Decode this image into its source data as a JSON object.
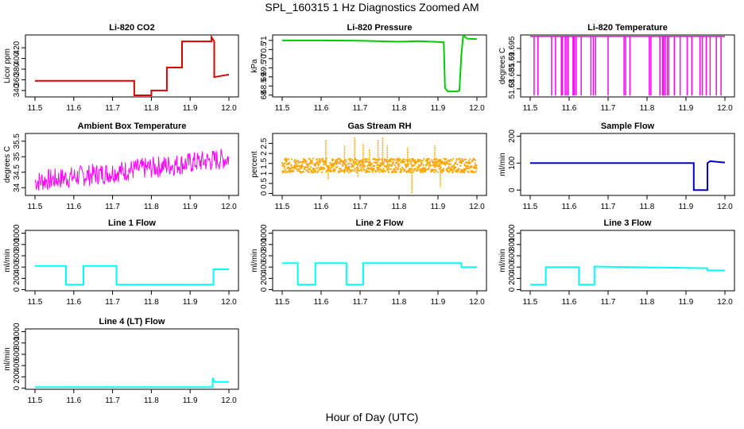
{
  "title": "SPL_160315  1 Hz Diagnostics Zoomed AM",
  "xlabel": "Hour of Day (UTC)",
  "chart_data": [
    {
      "type": "line",
      "title": "Li-820 CO2",
      "ylabel": "Licor ppm",
      "color": "#dd0000",
      "xlim": [
        11.5,
        12.0
      ],
      "ylim": [
        328,
        444
      ],
      "yticks": [
        340,
        360,
        380,
        400,
        420
      ],
      "x": [
        11.5,
        11.756,
        11.756,
        11.8,
        11.8,
        11.84,
        11.84,
        11.879,
        11.879,
        11.955,
        11.955,
        11.962,
        11.962,
        12.0
      ],
      "y": [
        358,
        358,
        331,
        331,
        340,
        340,
        383,
        383,
        432,
        432,
        440,
        432,
        365,
        370
      ]
    },
    {
      "type": "line",
      "title": "Li-820 Pressure",
      "ylabel": "kPa",
      "color": "#00cc00",
      "xlim": [
        11.5,
        12.0
      ],
      "ylim": [
        67.9,
        71.3
      ],
      "yticks": [
        68.0,
        68.5,
        69.0,
        69.5,
        70.0,
        70.5,
        71.0
      ],
      "x": [
        11.5,
        11.6,
        11.7,
        11.8,
        11.85,
        11.9,
        11.915,
        11.918,
        11.925,
        11.95,
        11.955,
        11.96,
        11.965,
        11.975,
        12.0
      ],
      "y": [
        71.0,
        71.0,
        70.98,
        70.93,
        70.96,
        70.92,
        70.9,
        68.4,
        68.2,
        68.2,
        68.25,
        70.2,
        71.3,
        71.1,
        71.07
      ]
    },
    {
      "type": "line",
      "title": "Li-820 Temperature",
      "ylabel": "degrees C",
      "color": "#ff00ff",
      "xlim": [
        11.5,
        12.0
      ],
      "ylim": [
        51.677,
        51.7
      ],
      "yticks": [
        51.68,
        51.685,
        51.69,
        51.695
      ],
      "high": 51.6995,
      "low": 51.6775,
      "spikes": [
        11.51,
        11.52,
        11.555,
        11.565,
        11.58,
        11.583,
        11.59,
        11.594,
        11.598,
        11.61,
        11.613,
        11.618,
        11.631,
        11.656,
        11.662,
        11.668,
        11.7,
        11.741,
        11.745,
        11.756,
        11.806,
        11.81,
        11.833,
        11.84,
        11.843,
        11.847,
        11.852,
        11.856,
        11.87,
        11.885,
        11.903,
        11.915,
        11.936,
        11.942,
        11.952,
        11.962,
        11.978,
        11.99
      ]
    },
    {
      "type": "line",
      "title": "Ambient Box Temperature",
      "ylabel": "degrees C",
      "color": "#ff00ff",
      "xlim": [
        11.5,
        12.0
      ],
      "ylim": [
        33.75,
        35.75
      ],
      "yticks": [
        34.0,
        34.5,
        35.0,
        35.5
      ],
      "trend_x": [
        11.5,
        12.0
      ],
      "trend_y": [
        34.2,
        34.95
      ],
      "amplitude": 0.35
    },
    {
      "type": "scatter",
      "title": "Gas Stream RH",
      "ylabel": "percent",
      "color": "#ffa500",
      "xlim": [
        11.5,
        12.0
      ],
      "ylim": [
        -0.1,
        3.0
      ],
      "yticks": [
        0.0,
        0.5,
        1.0,
        1.5,
        2.0,
        2.5
      ],
      "center": 1.4,
      "band": 0.35,
      "outliers_x": [
        11.612,
        11.618,
        11.66,
        11.686,
        11.694,
        11.708,
        11.724,
        11.746,
        11.758,
        11.77,
        11.822,
        11.833,
        11.892,
        11.906
      ],
      "outliers_y": [
        2.7,
        0.7,
        2.4,
        2.8,
        0.8,
        2.5,
        2.2,
        2.7,
        2.8,
        2.4,
        2.3,
        0.0,
        2.4,
        0.3
      ]
    },
    {
      "type": "line",
      "title": "Sample Flow",
      "ylabel": "ml/min",
      "color": "#0000cc",
      "xlim": [
        11.5,
        12.0
      ],
      "ylim": [
        -20,
        210
      ],
      "yticks": [
        0,
        100,
        200
      ],
      "x": [
        11.5,
        11.92,
        11.92,
        11.955,
        11.955,
        11.962,
        12.0
      ],
      "y": [
        100,
        100,
        0,
        0,
        100,
        107,
        102
      ]
    },
    {
      "type": "line",
      "title": "Line 1 Flow",
      "ylabel": "ml/min",
      "color": "#00ffff",
      "xlim": [
        11.5,
        12.0
      ],
      "ylim": [
        -20,
        1050
      ],
      "yticks": [
        0,
        200,
        400,
        600,
        800,
        1000
      ],
      "x": [
        11.5,
        11.58,
        11.58,
        11.625,
        11.625,
        11.71,
        11.71,
        11.96,
        11.96,
        12.0
      ],
      "y": [
        420,
        420,
        90,
        90,
        420,
        420,
        90,
        90,
        360,
        360
      ]
    },
    {
      "type": "line",
      "title": "Line 2 Flow",
      "ylabel": "ml/min",
      "color": "#00ffff",
      "xlim": [
        11.5,
        12.0
      ],
      "ylim": [
        -20,
        1050
      ],
      "yticks": [
        0,
        200,
        400,
        600,
        800,
        1000
      ],
      "x": [
        11.5,
        11.54,
        11.54,
        11.585,
        11.585,
        11.665,
        11.665,
        11.708,
        11.708,
        11.96,
        11.96,
        12.0
      ],
      "y": [
        470,
        470,
        90,
        90,
        470,
        470,
        90,
        90,
        470,
        470,
        400,
        400
      ]
    },
    {
      "type": "line",
      "title": "Line 3 Flow",
      "ylabel": "ml/min",
      "color": "#00ffff",
      "xlim": [
        11.5,
        12.0
      ],
      "ylim": [
        -20,
        1050
      ],
      "yticks": [
        0,
        200,
        400,
        600,
        800,
        1000
      ],
      "x": [
        11.5,
        11.54,
        11.54,
        11.625,
        11.625,
        11.665,
        11.665,
        11.955,
        11.955,
        12.0
      ],
      "y": [
        90,
        90,
        400,
        400,
        90,
        90,
        410,
        380,
        340,
        340
      ]
    },
    {
      "type": "line",
      "title": "Line 4 (LT) Flow",
      "ylabel": "ml/min",
      "color": "#00ffff",
      "xlim": [
        11.5,
        12.0
      ],
      "ylim": [
        -20,
        1050
      ],
      "yticks": [
        0,
        200,
        400,
        600,
        800,
        1000
      ],
      "x": [
        11.5,
        11.958,
        11.958,
        11.962,
        11.968,
        12.0
      ],
      "y": [
        20,
        20,
        180,
        120,
        110,
        110
      ]
    }
  ],
  "xticks": [
    11.5,
    11.6,
    11.7,
    11.8,
    11.9,
    12.0
  ],
  "xtick_labels": [
    "11.5",
    "11.6",
    "11.7",
    "11.8",
    "11.9",
    "12.0"
  ]
}
